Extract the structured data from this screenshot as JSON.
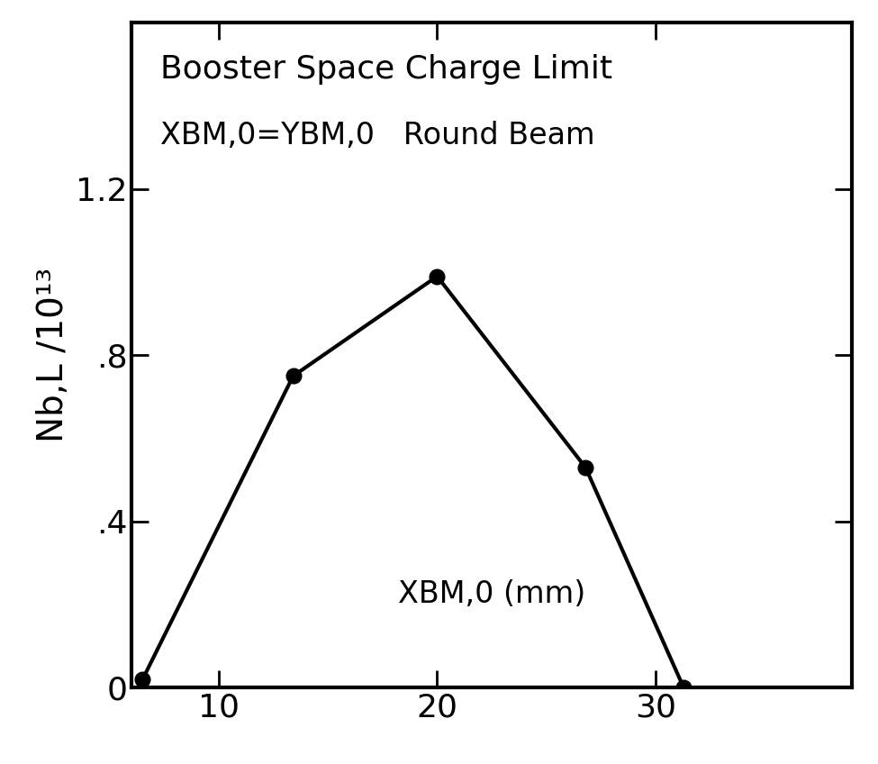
{
  "chart_data": {
    "type": "line",
    "title": "Booster Space Charge Limit",
    "subtitle": "XBM,0=YBM,0   Round Beam",
    "x_label": "XBM,0 (mm)",
    "y_label": "Nb,L /10¹³",
    "series": [
      {
        "x": [
          6.5,
          13.4,
          20.0,
          26.8,
          31.3
        ],
        "values": [
          0.02,
          0.75,
          0.99,
          0.53,
          0.0
        ],
        "color": "#000000",
        "marker": "o",
        "line_style": "solid"
      }
    ],
    "xlim": [
      6,
      39
    ],
    "ylim": [
      0,
      1.6
    ],
    "xticks": [
      10,
      20,
      30
    ],
    "yticks": [
      0,
      {
        "value": 0.4,
        "label": ".4"
      },
      {
        "value": 0.8,
        "label": ".8"
      },
      1.2
    ],
    "grid": false
  }
}
